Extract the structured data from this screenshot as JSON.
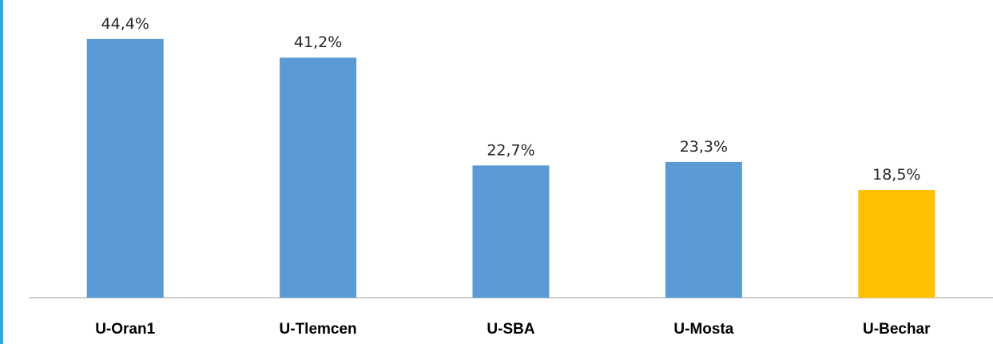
{
  "chart_data": {
    "type": "bar",
    "categories": [
      "U-Oran1",
      "U-Tlemcen",
      "U-SBA",
      "U-Mosta",
      "U-Bechar"
    ],
    "values": [
      44.4,
      41.2,
      22.7,
      23.3,
      18.5
    ],
    "value_labels": [
      "44,4%",
      "41,2%",
      "22,7%",
      "23,3%",
      "18,5%"
    ],
    "bar_colors": [
      "#5b9bd5",
      "#5b9bd5",
      "#5b9bd5",
      "#5b9bd5",
      "#ffc000"
    ],
    "title": "",
    "xlabel": "",
    "ylabel": "",
    "ylim": [
      0,
      47
    ],
    "grid": false,
    "legend": "none"
  },
  "colors": {
    "frame_accent": "#29a9e1",
    "axis_line": "#bfbfbf"
  }
}
